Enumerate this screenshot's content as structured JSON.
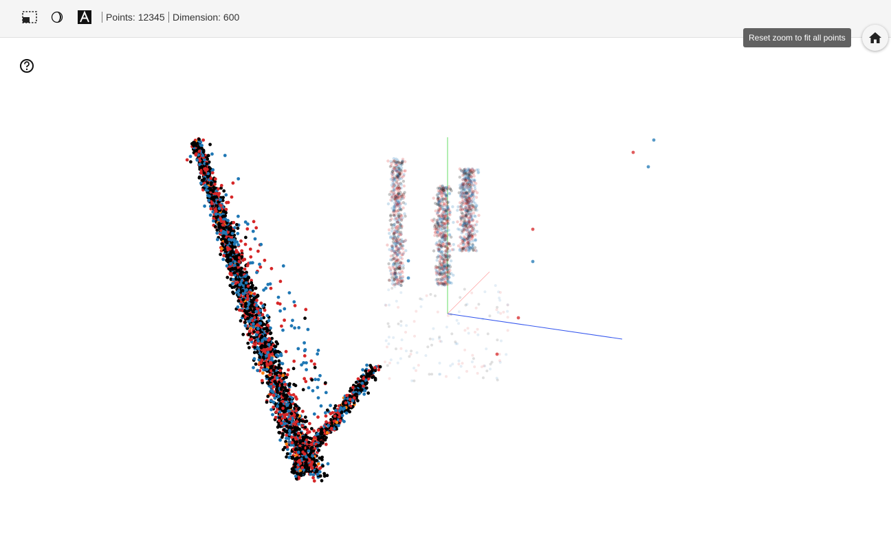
{
  "toolbar": {
    "points_label": "Points: 12345",
    "dimension_label": "Dimension: 600",
    "icons": [
      "selection-icon",
      "night-mode-icon",
      "label-font-icon"
    ]
  },
  "tooltip": {
    "text": "Reset zoom to fit all points"
  },
  "icons": {
    "home": "home-icon",
    "help": "help-icon"
  },
  "colors": {
    "series_blue": "#1f77b4",
    "series_red": "#d62728",
    "series_black": "#000000",
    "series_orange": "#ff7f0e",
    "axis_x": "#ff0000",
    "axis_y": "#00cc00",
    "axis_z": "#0000ff"
  }
}
